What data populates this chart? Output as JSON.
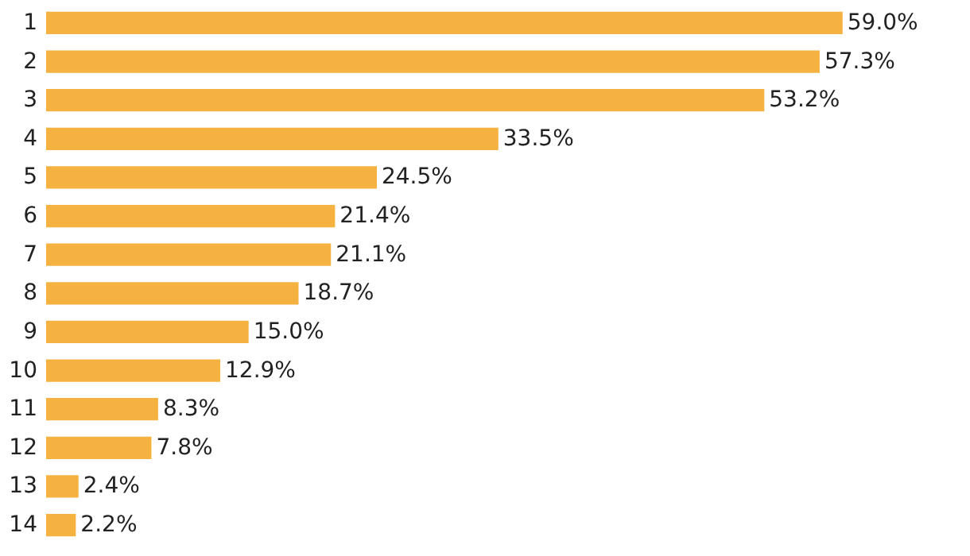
{
  "chart_data": {
    "type": "bar",
    "orientation": "horizontal",
    "categories": [
      "1",
      "2",
      "3",
      "4",
      "5",
      "6",
      "7",
      "8",
      "9",
      "10",
      "11",
      "12",
      "13",
      "14"
    ],
    "values": [
      59.0,
      57.3,
      53.2,
      33.5,
      24.5,
      21.4,
      21.1,
      18.7,
      15.0,
      12.9,
      8.3,
      7.8,
      2.4,
      2.2
    ],
    "value_labels": [
      "59.0%",
      "57.3%",
      "53.2%",
      "33.5%",
      "24.5%",
      "21.4%",
      "21.1%",
      "18.7%",
      "15.0%",
      "12.9%",
      "8.3%",
      "7.8%",
      "2.4%",
      "2.2%"
    ],
    "color": "#f6b240"
  }
}
